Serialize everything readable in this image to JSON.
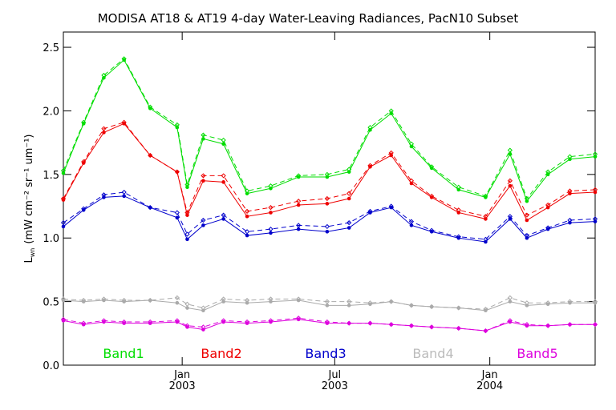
{
  "chart_data": {
    "type": "line",
    "title": "MODISA AT18 & AT19 4-day Water-Leaving Radiances, PacN10 Subset",
    "ylabel": "L",
    "ylabel_sub": "wn",
    "ylabel_units": "(mW cm⁻² sr⁻¹ um⁻¹)",
    "ylim": [
      0,
      2.62
    ],
    "xlim": [
      "2002-08-13",
      "2004-05-05"
    ],
    "y_ticks": [
      {
        "value": 0.0,
        "label": "0.0"
      },
      {
        "value": 0.5,
        "label": "0.5"
      },
      {
        "value": 1.0,
        "label": "1.0"
      },
      {
        "value": 1.5,
        "label": "1.5"
      },
      {
        "value": 2.0,
        "label": "2.0"
      },
      {
        "value": 2.5,
        "label": "2.5"
      }
    ],
    "x_ticks": [
      {
        "date": "2003-01-01",
        "month": "Jan",
        "year": "2003"
      },
      {
        "date": "2003-07-01",
        "month": "Jul",
        "year": "2003"
      },
      {
        "date": "2004-01-01",
        "month": "Jan",
        "year": "2004"
      }
    ],
    "x": [
      "2002-08-13",
      "2002-09-06",
      "2002-09-30",
      "2002-10-24",
      "2002-11-24",
      "2002-12-26",
      "2003-01-07",
      "2003-01-26",
      "2003-02-19",
      "2003-03-19",
      "2003-04-16",
      "2003-05-19",
      "2003-06-22",
      "2003-07-18",
      "2003-08-12",
      "2003-09-06",
      "2003-09-30",
      "2003-10-24",
      "2003-11-25",
      "2003-12-27",
      "2004-01-25",
      "2004-02-14",
      "2004-03-10",
      "2004-04-05",
      "2004-05-05"
    ],
    "series": [
      {
        "name": "Band1",
        "color": "#00dd00",
        "values": [
          1.51,
          1.9,
          2.26,
          2.4,
          2.02,
          1.87,
          1.4,
          1.78,
          1.74,
          1.35,
          1.39,
          1.48,
          1.48,
          1.52,
          1.85,
          1.98,
          1.72,
          1.55,
          1.38,
          1.32,
          1.66,
          1.29,
          1.5,
          1.62,
          1.64
        ],
        "values2": [
          1.53,
          1.91,
          2.28,
          2.41,
          2.03,
          1.89,
          1.42,
          1.81,
          1.77,
          1.37,
          1.41,
          1.49,
          1.5,
          1.54,
          1.87,
          2.0,
          1.74,
          1.56,
          1.4,
          1.33,
          1.69,
          1.31,
          1.52,
          1.64,
          1.66
        ]
      },
      {
        "name": "Band2",
        "color": "#ee0000",
        "values": [
          1.3,
          1.59,
          1.83,
          1.9,
          1.65,
          1.52,
          1.18,
          1.45,
          1.44,
          1.17,
          1.2,
          1.26,
          1.27,
          1.31,
          1.56,
          1.65,
          1.43,
          1.32,
          1.2,
          1.15,
          1.41,
          1.14,
          1.24,
          1.35,
          1.36
        ],
        "values2": [
          1.31,
          1.6,
          1.86,
          1.91,
          1.65,
          1.52,
          1.2,
          1.49,
          1.49,
          1.21,
          1.24,
          1.29,
          1.31,
          1.35,
          1.57,
          1.67,
          1.45,
          1.33,
          1.22,
          1.17,
          1.45,
          1.18,
          1.26,
          1.37,
          1.38
        ]
      },
      {
        "name": "Band3",
        "color": "#0000cc",
        "values": [
          1.09,
          1.22,
          1.32,
          1.33,
          1.24,
          1.16,
          0.99,
          1.1,
          1.15,
          1.02,
          1.04,
          1.07,
          1.05,
          1.08,
          1.2,
          1.24,
          1.1,
          1.05,
          1.0,
          0.97,
          1.15,
          1.0,
          1.07,
          1.12,
          1.13
        ],
        "values2": [
          1.12,
          1.23,
          1.34,
          1.36,
          1.24,
          1.2,
          1.03,
          1.14,
          1.18,
          1.05,
          1.07,
          1.1,
          1.09,
          1.12,
          1.21,
          1.25,
          1.13,
          1.06,
          1.01,
          0.99,
          1.17,
          1.02,
          1.08,
          1.14,
          1.15
        ]
      },
      {
        "name": "Band4",
        "color": "#aaaaaa",
        "values": [
          0.51,
          0.5,
          0.51,
          0.5,
          0.51,
          0.49,
          0.45,
          0.43,
          0.5,
          0.49,
          0.5,
          0.51,
          0.47,
          0.47,
          0.48,
          0.5,
          0.47,
          0.46,
          0.45,
          0.43,
          0.5,
          0.47,
          0.48,
          0.49,
          0.49
        ],
        "values2": [
          0.52,
          0.51,
          0.52,
          0.51,
          0.51,
          0.53,
          0.48,
          0.45,
          0.52,
          0.51,
          0.52,
          0.52,
          0.5,
          0.5,
          0.49,
          0.5,
          0.47,
          0.46,
          0.45,
          0.44,
          0.53,
          0.49,
          0.49,
          0.5,
          0.5
        ],
        "label_color": "#bbbbbb"
      },
      {
        "name": "Band5",
        "color": "#dd00dd",
        "values": [
          0.35,
          0.32,
          0.34,
          0.33,
          0.33,
          0.34,
          0.3,
          0.28,
          0.34,
          0.33,
          0.34,
          0.36,
          0.33,
          0.33,
          0.33,
          0.32,
          0.31,
          0.3,
          0.29,
          0.27,
          0.34,
          0.31,
          0.31,
          0.32,
          0.32
        ],
        "values2": [
          0.36,
          0.33,
          0.35,
          0.34,
          0.34,
          0.35,
          0.31,
          0.3,
          0.35,
          0.34,
          0.35,
          0.37,
          0.34,
          0.33,
          0.33,
          0.32,
          0.31,
          0.3,
          0.29,
          0.27,
          0.35,
          0.32,
          0.31,
          0.32,
          0.32
        ]
      }
    ],
    "legend_placement": "bottom-inside",
    "grid": false
  }
}
